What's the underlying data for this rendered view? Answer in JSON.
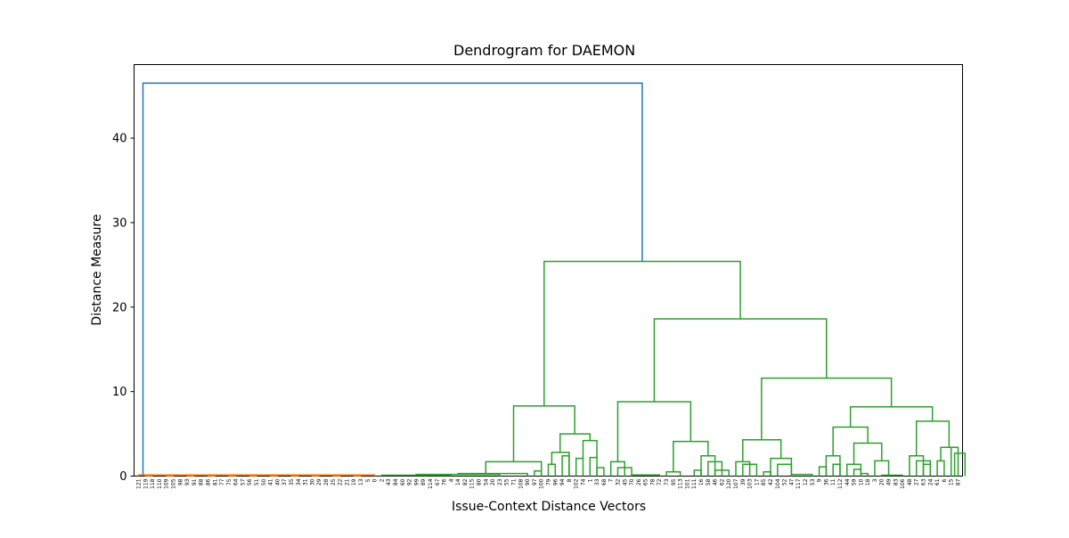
{
  "chart_data": {
    "type": "dendrogram",
    "title": "Dendrogram for DAEMON",
    "xlabel": "Issue-Context Distance Vectors",
    "ylabel": "Distance Measure",
    "ylim": [
      0,
      48.7
    ],
    "y_ticks": [
      0,
      10,
      20,
      30,
      40
    ],
    "grid": false,
    "leaf_labels": [
      "121",
      "119",
      "118",
      "110",
      "109",
      "105",
      "98",
      "93",
      "91",
      "88",
      "86",
      "81",
      "77",
      "75",
      "64",
      "57",
      "56",
      "51",
      "50",
      "41",
      "40",
      "37",
      "35",
      "34",
      "31",
      "30",
      "29",
      "28",
      "25",
      "22",
      "21",
      "19",
      "13",
      "5",
      "0",
      "2",
      "43",
      "84",
      "60",
      "92",
      "99",
      "89",
      "114",
      "67",
      "76",
      "4",
      "14",
      "82",
      "115",
      "80",
      "54",
      "20",
      "23",
      "55",
      "71",
      "108",
      "90",
      "97",
      "100",
      "79",
      "96",
      "94",
      "8",
      "102",
      "74",
      "1",
      "33",
      "68",
      "7",
      "32",
      "45",
      "70",
      "26",
      "65",
      "78",
      "72",
      "73",
      "95",
      "113",
      "101",
      "111",
      "16",
      "58",
      "46",
      "62",
      "120",
      "107",
      "39",
      "103",
      "17",
      "85",
      "42",
      "104",
      "52",
      "47",
      "117",
      "12",
      "53",
      "9",
      "36",
      "11",
      "112",
      "44",
      "59",
      "10",
      "18",
      "3",
      "20",
      "49",
      "83",
      "106",
      "48",
      "27",
      "63",
      "24",
      "61",
      "6",
      "15",
      "87"
    ],
    "colors": {
      "orange": "#ff7f0e",
      "green": "#2ca02c",
      "blue": "#1f77b4"
    },
    "merges": [
      {
        "height": 46.5,
        "color": "blue"
      },
      {
        "height": 25.4,
        "color": "green"
      },
      {
        "height": 18.6,
        "color": "green"
      },
      {
        "height": 11.6,
        "color": "green"
      },
      {
        "height": 8.8,
        "color": "green"
      },
      {
        "height": 8.3,
        "color": "green"
      },
      {
        "height": 8.2,
        "color": "green"
      },
      {
        "height": 6.5,
        "color": "green"
      },
      {
        "height": 5.0,
        "color": "green"
      },
      {
        "height": 4.3,
        "color": "green"
      },
      {
        "height": 4.1,
        "color": "green"
      },
      {
        "height": 3.9,
        "color": "green"
      },
      {
        "height": 1.7,
        "color": "green"
      },
      {
        "height": 0.15,
        "color": "orange"
      }
    ]
  }
}
